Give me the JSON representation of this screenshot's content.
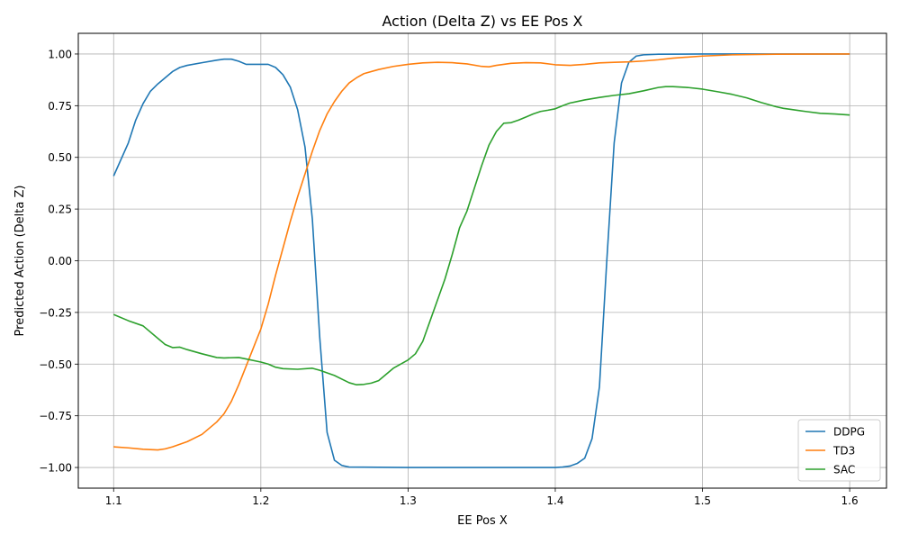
{
  "chart_data": {
    "type": "line",
    "title": "Action (Delta Z) vs EE Pos X",
    "xlabel": "EE Pos X",
    "ylabel": "Predicted Action (Delta Z)",
    "xlim": [
      1.076,
      1.625
    ],
    "ylim": [
      -1.1,
      1.1
    ],
    "xticks": [
      1.1,
      1.2,
      1.3,
      1.4,
      1.5,
      1.6
    ],
    "xtick_labels": [
      "1.1",
      "1.2",
      "1.3",
      "1.4",
      "1.5",
      "1.6"
    ],
    "yticks": [
      -1.0,
      -0.75,
      -0.5,
      -0.25,
      0.0,
      0.25,
      0.5,
      0.75,
      1.0
    ],
    "ytick_labels": [
      "−1.00",
      "−0.75",
      "−0.50",
      "−0.25",
      "0.00",
      "0.25",
      "0.50",
      "0.75",
      "1.00"
    ],
    "grid": true,
    "legend_position": "lower-right",
    "series": [
      {
        "name": "DDPG",
        "color": "#1f77b4",
        "points": [
          [
            1.1,
            0.41
          ],
          [
            1.11,
            0.57
          ],
          [
            1.115,
            0.68
          ],
          [
            1.12,
            0.76
          ],
          [
            1.125,
            0.82
          ],
          [
            1.13,
            0.855
          ],
          [
            1.135,
            0.885
          ],
          [
            1.14,
            0.915
          ],
          [
            1.145,
            0.935
          ],
          [
            1.15,
            0.945
          ],
          [
            1.16,
            0.958
          ],
          [
            1.17,
            0.97
          ],
          [
            1.175,
            0.975
          ],
          [
            1.18,
            0.975
          ],
          [
            1.185,
            0.965
          ],
          [
            1.19,
            0.95
          ],
          [
            1.2,
            0.95
          ],
          [
            1.205,
            0.95
          ],
          [
            1.21,
            0.935
          ],
          [
            1.215,
            0.9
          ],
          [
            1.22,
            0.84
          ],
          [
            1.225,
            0.73
          ],
          [
            1.23,
            0.55
          ],
          [
            1.235,
            0.2
          ],
          [
            1.24,
            -0.37
          ],
          [
            1.245,
            -0.83
          ],
          [
            1.25,
            -0.965
          ],
          [
            1.255,
            -0.99
          ],
          [
            1.26,
            -0.998
          ],
          [
            1.3,
            -1.0
          ],
          [
            1.4,
            -1.0
          ],
          [
            1.405,
            -0.998
          ],
          [
            1.41,
            -0.993
          ],
          [
            1.415,
            -0.98
          ],
          [
            1.42,
            -0.955
          ],
          [
            1.425,
            -0.86
          ],
          [
            1.43,
            -0.61
          ],
          [
            1.435,
            0.0
          ],
          [
            1.44,
            0.57
          ],
          [
            1.445,
            0.86
          ],
          [
            1.45,
            0.96
          ],
          [
            1.455,
            0.99
          ],
          [
            1.46,
            0.996
          ],
          [
            1.47,
            0.999
          ],
          [
            1.5,
            1.0
          ],
          [
            1.6,
            1.0
          ]
        ]
      },
      {
        "name": "TD3",
        "color": "#ff7f0e",
        "points": [
          [
            1.1,
            -0.9
          ],
          [
            1.11,
            -0.905
          ],
          [
            1.12,
            -0.912
          ],
          [
            1.13,
            -0.915
          ],
          [
            1.135,
            -0.91
          ],
          [
            1.14,
            -0.9
          ],
          [
            1.15,
            -0.875
          ],
          [
            1.16,
            -0.84
          ],
          [
            1.17,
            -0.78
          ],
          [
            1.175,
            -0.74
          ],
          [
            1.18,
            -0.68
          ],
          [
            1.185,
            -0.6
          ],
          [
            1.19,
            -0.51
          ],
          [
            1.195,
            -0.42
          ],
          [
            1.2,
            -0.33
          ],
          [
            1.205,
            -0.21
          ],
          [
            1.21,
            -0.07
          ],
          [
            1.215,
            0.06
          ],
          [
            1.22,
            0.19
          ],
          [
            1.225,
            0.31
          ],
          [
            1.23,
            0.42
          ],
          [
            1.235,
            0.53
          ],
          [
            1.24,
            0.63
          ],
          [
            1.245,
            0.71
          ],
          [
            1.25,
            0.77
          ],
          [
            1.255,
            0.82
          ],
          [
            1.26,
            0.86
          ],
          [
            1.265,
            0.885
          ],
          [
            1.27,
            0.905
          ],
          [
            1.28,
            0.925
          ],
          [
            1.29,
            0.94
          ],
          [
            1.3,
            0.95
          ],
          [
            1.31,
            0.957
          ],
          [
            1.32,
            0.96
          ],
          [
            1.33,
            0.958
          ],
          [
            1.34,
            0.952
          ],
          [
            1.35,
            0.94
          ],
          [
            1.355,
            0.938
          ],
          [
            1.36,
            0.945
          ],
          [
            1.37,
            0.955
          ],
          [
            1.38,
            0.958
          ],
          [
            1.39,
            0.957
          ],
          [
            1.4,
            0.948
          ],
          [
            1.41,
            0.945
          ],
          [
            1.42,
            0.95
          ],
          [
            1.43,
            0.957
          ],
          [
            1.44,
            0.96
          ],
          [
            1.45,
            0.962
          ],
          [
            1.46,
            0.966
          ],
          [
            1.47,
            0.972
          ],
          [
            1.48,
            0.98
          ],
          [
            1.5,
            0.99
          ],
          [
            1.52,
            0.996
          ],
          [
            1.55,
            0.999
          ],
          [
            1.6,
            1.0
          ]
        ]
      },
      {
        "name": "SAC",
        "color": "#2ca02c",
        "points": [
          [
            1.1,
            -0.26
          ],
          [
            1.11,
            -0.29
          ],
          [
            1.12,
            -0.315
          ],
          [
            1.13,
            -0.375
          ],
          [
            1.135,
            -0.405
          ],
          [
            1.14,
            -0.42
          ],
          [
            1.145,
            -0.418
          ],
          [
            1.15,
            -0.43
          ],
          [
            1.16,
            -0.45
          ],
          [
            1.17,
            -0.468
          ],
          [
            1.175,
            -0.47
          ],
          [
            1.185,
            -0.468
          ],
          [
            1.19,
            -0.475
          ],
          [
            1.2,
            -0.49
          ],
          [
            1.205,
            -0.5
          ],
          [
            1.21,
            -0.515
          ],
          [
            1.215,
            -0.522
          ],
          [
            1.225,
            -0.525
          ],
          [
            1.235,
            -0.52
          ],
          [
            1.24,
            -0.53
          ],
          [
            1.25,
            -0.555
          ],
          [
            1.26,
            -0.59
          ],
          [
            1.265,
            -0.6
          ],
          [
            1.27,
            -0.598
          ],
          [
            1.275,
            -0.592
          ],
          [
            1.28,
            -0.58
          ],
          [
            1.29,
            -0.52
          ],
          [
            1.3,
            -0.48
          ],
          [
            1.305,
            -0.45
          ],
          [
            1.31,
            -0.39
          ],
          [
            1.315,
            -0.29
          ],
          [
            1.32,
            -0.19
          ],
          [
            1.325,
            -0.09
          ],
          [
            1.33,
            0.03
          ],
          [
            1.335,
            0.16
          ],
          [
            1.34,
            0.24
          ],
          [
            1.345,
            0.35
          ],
          [
            1.35,
            0.46
          ],
          [
            1.355,
            0.56
          ],
          [
            1.36,
            0.625
          ],
          [
            1.365,
            0.665
          ],
          [
            1.37,
            0.668
          ],
          [
            1.375,
            0.68
          ],
          [
            1.38,
            0.695
          ],
          [
            1.385,
            0.71
          ],
          [
            1.39,
            0.722
          ],
          [
            1.395,
            0.728
          ],
          [
            1.4,
            0.735
          ],
          [
            1.405,
            0.75
          ],
          [
            1.41,
            0.763
          ],
          [
            1.42,
            0.778
          ],
          [
            1.43,
            0.79
          ],
          [
            1.44,
            0.8
          ],
          [
            1.45,
            0.808
          ],
          [
            1.46,
            0.822
          ],
          [
            1.47,
            0.838
          ],
          [
            1.475,
            0.842
          ],
          [
            1.48,
            0.842
          ],
          [
            1.49,
            0.838
          ],
          [
            1.5,
            0.83
          ],
          [
            1.51,
            0.818
          ],
          [
            1.52,
            0.805
          ],
          [
            1.53,
            0.788
          ],
          [
            1.54,
            0.765
          ],
          [
            1.55,
            0.745
          ],
          [
            1.555,
            0.737
          ],
          [
            1.56,
            0.732
          ],
          [
            1.57,
            0.722
          ],
          [
            1.58,
            0.713
          ],
          [
            1.59,
            0.71
          ],
          [
            1.6,
            0.705
          ]
        ]
      }
    ]
  }
}
